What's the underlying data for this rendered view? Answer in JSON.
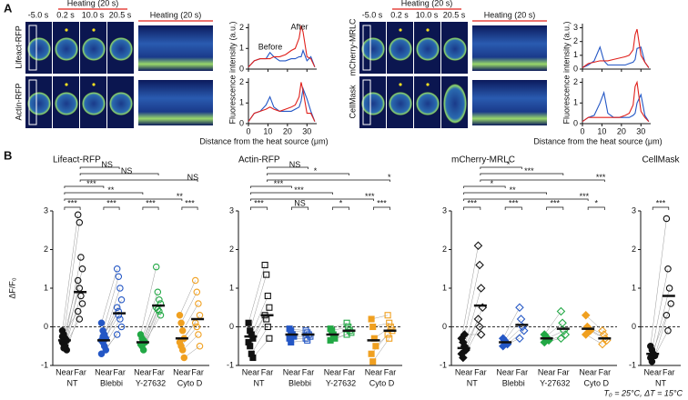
{
  "panel_a": {
    "label": "A",
    "heating": "Heating (20 s)",
    "time_labels": [
      "-5.0 s",
      "0.2 s",
      "10.0 s",
      "20.5 s"
    ],
    "ylabel": "Fluorescence intensity (a.u.)",
    "xlabel": "Distance from the heat source (μm)",
    "before": "Before",
    "after": "After",
    "colors": {
      "before": "#2457c5",
      "after": "#e0201b"
    },
    "xlim": [
      0,
      35
    ],
    "xticks": [
      0,
      10,
      20,
      30
    ],
    "x": [
      0,
      3,
      6,
      9,
      11,
      13,
      16,
      19,
      22,
      24,
      26,
      27,
      28,
      30,
      32,
      34
    ],
    "rows": [
      {
        "name": "Lifeact-RFP",
        "ylim": [
          0,
          2.2
        ],
        "yticks": [
          0,
          1,
          2
        ],
        "before": [
          0.1,
          0.4,
          0.5,
          0.5,
          0.8,
          0.6,
          0.4,
          0.4,
          0.5,
          0.5,
          0.6,
          0.6,
          0.9,
          0.4,
          0.6,
          0.1
        ],
        "after": [
          0.1,
          0.4,
          0.5,
          0.5,
          0.5,
          0.6,
          0.6,
          0.7,
          0.9,
          1.0,
          1.5,
          2.1,
          1.8,
          0.6,
          0.5,
          0.1
        ]
      },
      {
        "name": "Actin-RFP",
        "ylim": [
          0,
          2.2
        ],
        "yticks": [
          0,
          1,
          2
        ],
        "before": [
          0.1,
          0.5,
          0.6,
          0.9,
          1.3,
          0.8,
          0.6,
          0.6,
          0.6,
          0.7,
          0.8,
          1.1,
          1.7,
          1.2,
          0.6,
          0.1
        ],
        "after": [
          0.1,
          0.5,
          0.6,
          0.7,
          0.8,
          0.7,
          0.6,
          0.7,
          0.8,
          0.9,
          1.3,
          2.0,
          1.6,
          0.5,
          0.5,
          0.1
        ]
      },
      {
        "name": "mCherry-MRLC",
        "ylim": [
          0,
          3.3
        ],
        "yticks": [
          0,
          1,
          2,
          3
        ],
        "before": [
          0.1,
          0.3,
          0.6,
          1.6,
          0.6,
          0.3,
          0.3,
          0.3,
          0.3,
          0.4,
          0.5,
          0.7,
          1.5,
          1.6,
          0.5,
          0.1
        ],
        "after": [
          0.1,
          0.4,
          0.5,
          0.6,
          0.6,
          0.6,
          0.7,
          0.8,
          0.9,
          1.0,
          1.4,
          2.5,
          2.9,
          1.0,
          0.5,
          0.1
        ]
      },
      {
        "name": "CellMask",
        "ylim": [
          0,
          2.2
        ],
        "yticks": [
          0,
          1,
          2
        ],
        "before": [
          0.1,
          0.3,
          0.4,
          1.0,
          1.5,
          0.5,
          0.3,
          0.3,
          0.3,
          0.3,
          0.4,
          0.5,
          1.0,
          1.4,
          0.4,
          0.1
        ],
        "after": [
          0.1,
          0.3,
          0.3,
          0.3,
          0.3,
          0.3,
          0.3,
          0.3,
          0.4,
          0.5,
          0.9,
          1.8,
          2.0,
          0.6,
          0.3,
          0.1
        ]
      }
    ]
  },
  "panel_b": {
    "label": "B",
    "ylabel": "ΔF/F₀",
    "ylim": [
      -1,
      3
    ],
    "yticks": [
      -1,
      0,
      1,
      2,
      3
    ],
    "pair_labels": [
      "Near",
      "Far"
    ],
    "footnote": "T₀ = 25°C, ΔT = 15°C",
    "charts": [
      {
        "title": "Lifeact-RFP",
        "marker": "circle",
        "groups": [
          {
            "name": "NT",
            "color": "#111111",
            "near_mean": -0.35,
            "far_mean": 0.9,
            "near": [
              -0.1,
              -0.2,
              -0.3,
              -0.35,
              -0.4,
              -0.45,
              -0.5,
              -0.6,
              -0.25,
              -0.55
            ],
            "far": [
              2.9,
              2.7,
              1.8,
              1.5,
              1.2,
              1.0,
              0.8,
              0.6,
              0.4,
              0.2
            ]
          },
          {
            "name": "Blebbi",
            "color": "#2457c5",
            "near_mean": -0.35,
            "far_mean": 0.35,
            "near": [
              0.1,
              -0.1,
              -0.2,
              -0.3,
              -0.35,
              -0.4,
              -0.5,
              -0.6,
              -0.7,
              -0.25
            ],
            "far": [
              1.5,
              1.3,
              1.0,
              0.7,
              0.5,
              0.3,
              0.2,
              0.0,
              -0.2,
              0.4
            ]
          },
          {
            "name": "Y-27632",
            "color": "#22a845",
            "near_mean": -0.4,
            "far_mean": 0.55,
            "near": [
              -0.2,
              -0.3,
              -0.35,
              -0.4,
              -0.45,
              -0.5,
              -0.6,
              -0.4
            ],
            "far": [
              1.55,
              0.9,
              0.7,
              0.6,
              0.5,
              0.45,
              0.4,
              0.3
            ]
          },
          {
            "name": "Cyto D",
            "color": "#f0a020",
            "near_mean": -0.3,
            "far_mean": 0.2,
            "near": [
              0.3,
              0.1,
              -0.1,
              -0.3,
              -0.4,
              -0.5,
              -0.6,
              -0.8
            ],
            "far": [
              1.2,
              0.9,
              0.6,
              0.3,
              0.1,
              0.0,
              -0.2,
              -0.5
            ]
          }
        ],
        "pair_sig": [
          "***",
          "***",
          "***",
          "***"
        ],
        "brackets": [
          {
            "from": 0,
            "to": 1,
            "side": "far",
            "label": "NS"
          },
          {
            "from": 0,
            "to": 2,
            "side": "far",
            "label": "NS"
          },
          {
            "from": 0,
            "to": 3,
            "side": "far",
            "label": "NS"
          },
          {
            "from": 0,
            "to": 1,
            "side": "near",
            "label": "***"
          },
          {
            "from": 0,
            "to": 2,
            "side": "near",
            "label": "**"
          },
          {
            "from": 0,
            "to": 3,
            "side": "near",
            "label": "**"
          }
        ]
      },
      {
        "title": "Actin-RFP",
        "marker": "square",
        "groups": [
          {
            "name": "NT",
            "color": "#111111",
            "near_mean": -0.25,
            "far_mean": 0.3,
            "near": [
              0.1,
              -0.1,
              -0.2,
              -0.3,
              -0.4,
              -0.5,
              -0.7,
              -0.8
            ],
            "far": [
              1.6,
              1.35,
              0.8,
              0.5,
              0.3,
              0.2,
              0.0,
              -0.3
            ]
          },
          {
            "name": "Blebbi",
            "color": "#2457c5",
            "near_mean": -0.2,
            "far_mean": -0.2,
            "near": [
              -0.05,
              -0.1,
              -0.2,
              -0.25,
              -0.3,
              -0.4
            ],
            "far": [
              -0.1,
              -0.15,
              -0.2,
              -0.25,
              -0.3,
              -0.35
            ]
          },
          {
            "name": "Y-27632",
            "color": "#22a845",
            "near_mean": -0.2,
            "far_mean": -0.1,
            "near": [
              -0.05,
              -0.1,
              -0.2,
              -0.3,
              -0.35
            ],
            "far": [
              0.1,
              0.0,
              -0.1,
              -0.15,
              -0.2
            ]
          },
          {
            "name": "Cyto D",
            "color": "#f0a020",
            "near_mean": -0.35,
            "far_mean": -0.1,
            "near": [
              0.2,
              0.0,
              -0.3,
              -0.5,
              -0.7,
              -0.9
            ],
            "far": [
              0.3,
              0.1,
              0.0,
              -0.1,
              -0.2,
              -0.3
            ]
          }
        ],
        "pair_sig": [
          "***",
          "NS",
          "*",
          "***"
        ],
        "brackets": [
          {
            "from": 0,
            "to": 1,
            "side": "far",
            "label": "NS"
          },
          {
            "from": 0,
            "to": 2,
            "side": "far",
            "label": "*"
          },
          {
            "from": 0,
            "to": 3,
            "side": "far",
            "label": "*"
          },
          {
            "from": 0,
            "to": 1,
            "side": "near",
            "label": "***"
          },
          {
            "from": 0,
            "to": 2,
            "side": "near",
            "label": "***"
          },
          {
            "from": 0,
            "to": 3,
            "side": "near",
            "label": "***"
          }
        ]
      },
      {
        "title": "mCherry-MRLC",
        "marker": "diamond",
        "groups": [
          {
            "name": "NT",
            "color": "#111111",
            "near_mean": -0.55,
            "far_mean": 0.55,
            "near": [
              -0.3,
              -0.4,
              -0.5,
              -0.6,
              -0.7,
              -0.8,
              -0.2
            ],
            "far": [
              2.1,
              1.6,
              1.0,
              0.5,
              0.2,
              0.0,
              -0.2
            ]
          },
          {
            "name": "Blebbi",
            "color": "#2457c5",
            "near_mean": -0.4,
            "far_mean": 0.05,
            "near": [
              -0.3,
              -0.35,
              -0.4,
              -0.45,
              -0.5
            ],
            "far": [
              0.5,
              0.2,
              0.0,
              -0.1,
              -0.3
            ]
          },
          {
            "name": "Y-27632",
            "color": "#22a845",
            "near_mean": -0.3,
            "far_mean": -0.05,
            "near": [
              -0.2,
              -0.25,
              -0.3,
              -0.35,
              -0.4
            ],
            "far": [
              0.4,
              0.1,
              -0.1,
              -0.2,
              -0.3
            ]
          },
          {
            "name": "Cyto D",
            "color": "#f0a020",
            "near_mean": -0.05,
            "far_mean": -0.3,
            "near": [
              0.3,
              0.0,
              -0.05,
              -0.1,
              -0.2
            ],
            "far": [
              -0.1,
              -0.2,
              -0.3,
              -0.35,
              -0.45
            ]
          }
        ],
        "pair_sig": [
          "***",
          "***",
          "***",
          "*"
        ],
        "brackets": [
          {
            "from": 0,
            "to": 1,
            "side": "far",
            "label": "*"
          },
          {
            "from": 0,
            "to": 2,
            "side": "far",
            "label": "***"
          },
          {
            "from": 0,
            "to": 3,
            "side": "far",
            "label": "***"
          },
          {
            "from": 0,
            "to": 1,
            "side": "near",
            "label": "*"
          },
          {
            "from": 0,
            "to": 2,
            "side": "near",
            "label": "**"
          },
          {
            "from": 0,
            "to": 3,
            "side": "near",
            "label": "***"
          }
        ]
      },
      {
        "title": "CellMask",
        "marker": "circle",
        "groups": [
          {
            "name": "NT",
            "color": "#111111",
            "near_mean": -0.7,
            "far_mean": 0.8,
            "near": [
              -0.5,
              -0.6,
              -0.7,
              -0.75,
              -0.8,
              -0.9
            ],
            "far": [
              2.8,
              1.5,
              1.0,
              0.6,
              0.3,
              -0.1
            ]
          }
        ],
        "pair_sig": [
          "***"
        ],
        "brackets": []
      }
    ]
  }
}
